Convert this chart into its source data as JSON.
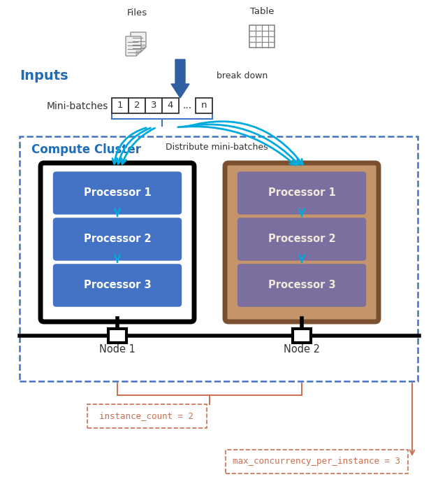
{
  "fig_width": 6.17,
  "fig_height": 6.82,
  "dpi": 100,
  "bg_color": "#ffffff",
  "title_inputs": "Inputs",
  "title_inputs_color": "#1E6DB5",
  "title_cluster": "Compute Cluster",
  "title_cluster_color": "#1E6DB5",
  "files_label": "Files",
  "table_label": "Table",
  "break_down_label": "break down",
  "mini_batches_label": "Mini-batches",
  "mini_batch_items": [
    "1",
    "2",
    "3",
    "4",
    "...",
    "n"
  ],
  "distribute_label": "Distribute mini-batches",
  "node1_label": "Node 1",
  "node2_label": "Node 2",
  "processor_labels": [
    "Processor 1",
    "Processor 2",
    "Processor 3"
  ],
  "node1_proc_bg": "#4472C4",
  "node2_proc_bg": "#7B6FA0",
  "node1_outer_fill": "#ffffff",
  "node1_outer_edge": "#000000",
  "node2_outer_fill": "#C4956A",
  "node2_outer_edge": "#7A5030",
  "cluster_fill": "#ffffff",
  "cluster_border": "#4472C4",
  "arrow_cyan": "#00AADD",
  "arrow_blue_fill": "#2F5FA0",
  "net_line_color": "#000000",
  "node_label_color": "#333333",
  "annot_color": "#C87050",
  "instance_count_label": "instance_count = 2",
  "max_concurrency_label": "max_concurrency_per_instance = 3",
  "bracket_color": "#C87050"
}
